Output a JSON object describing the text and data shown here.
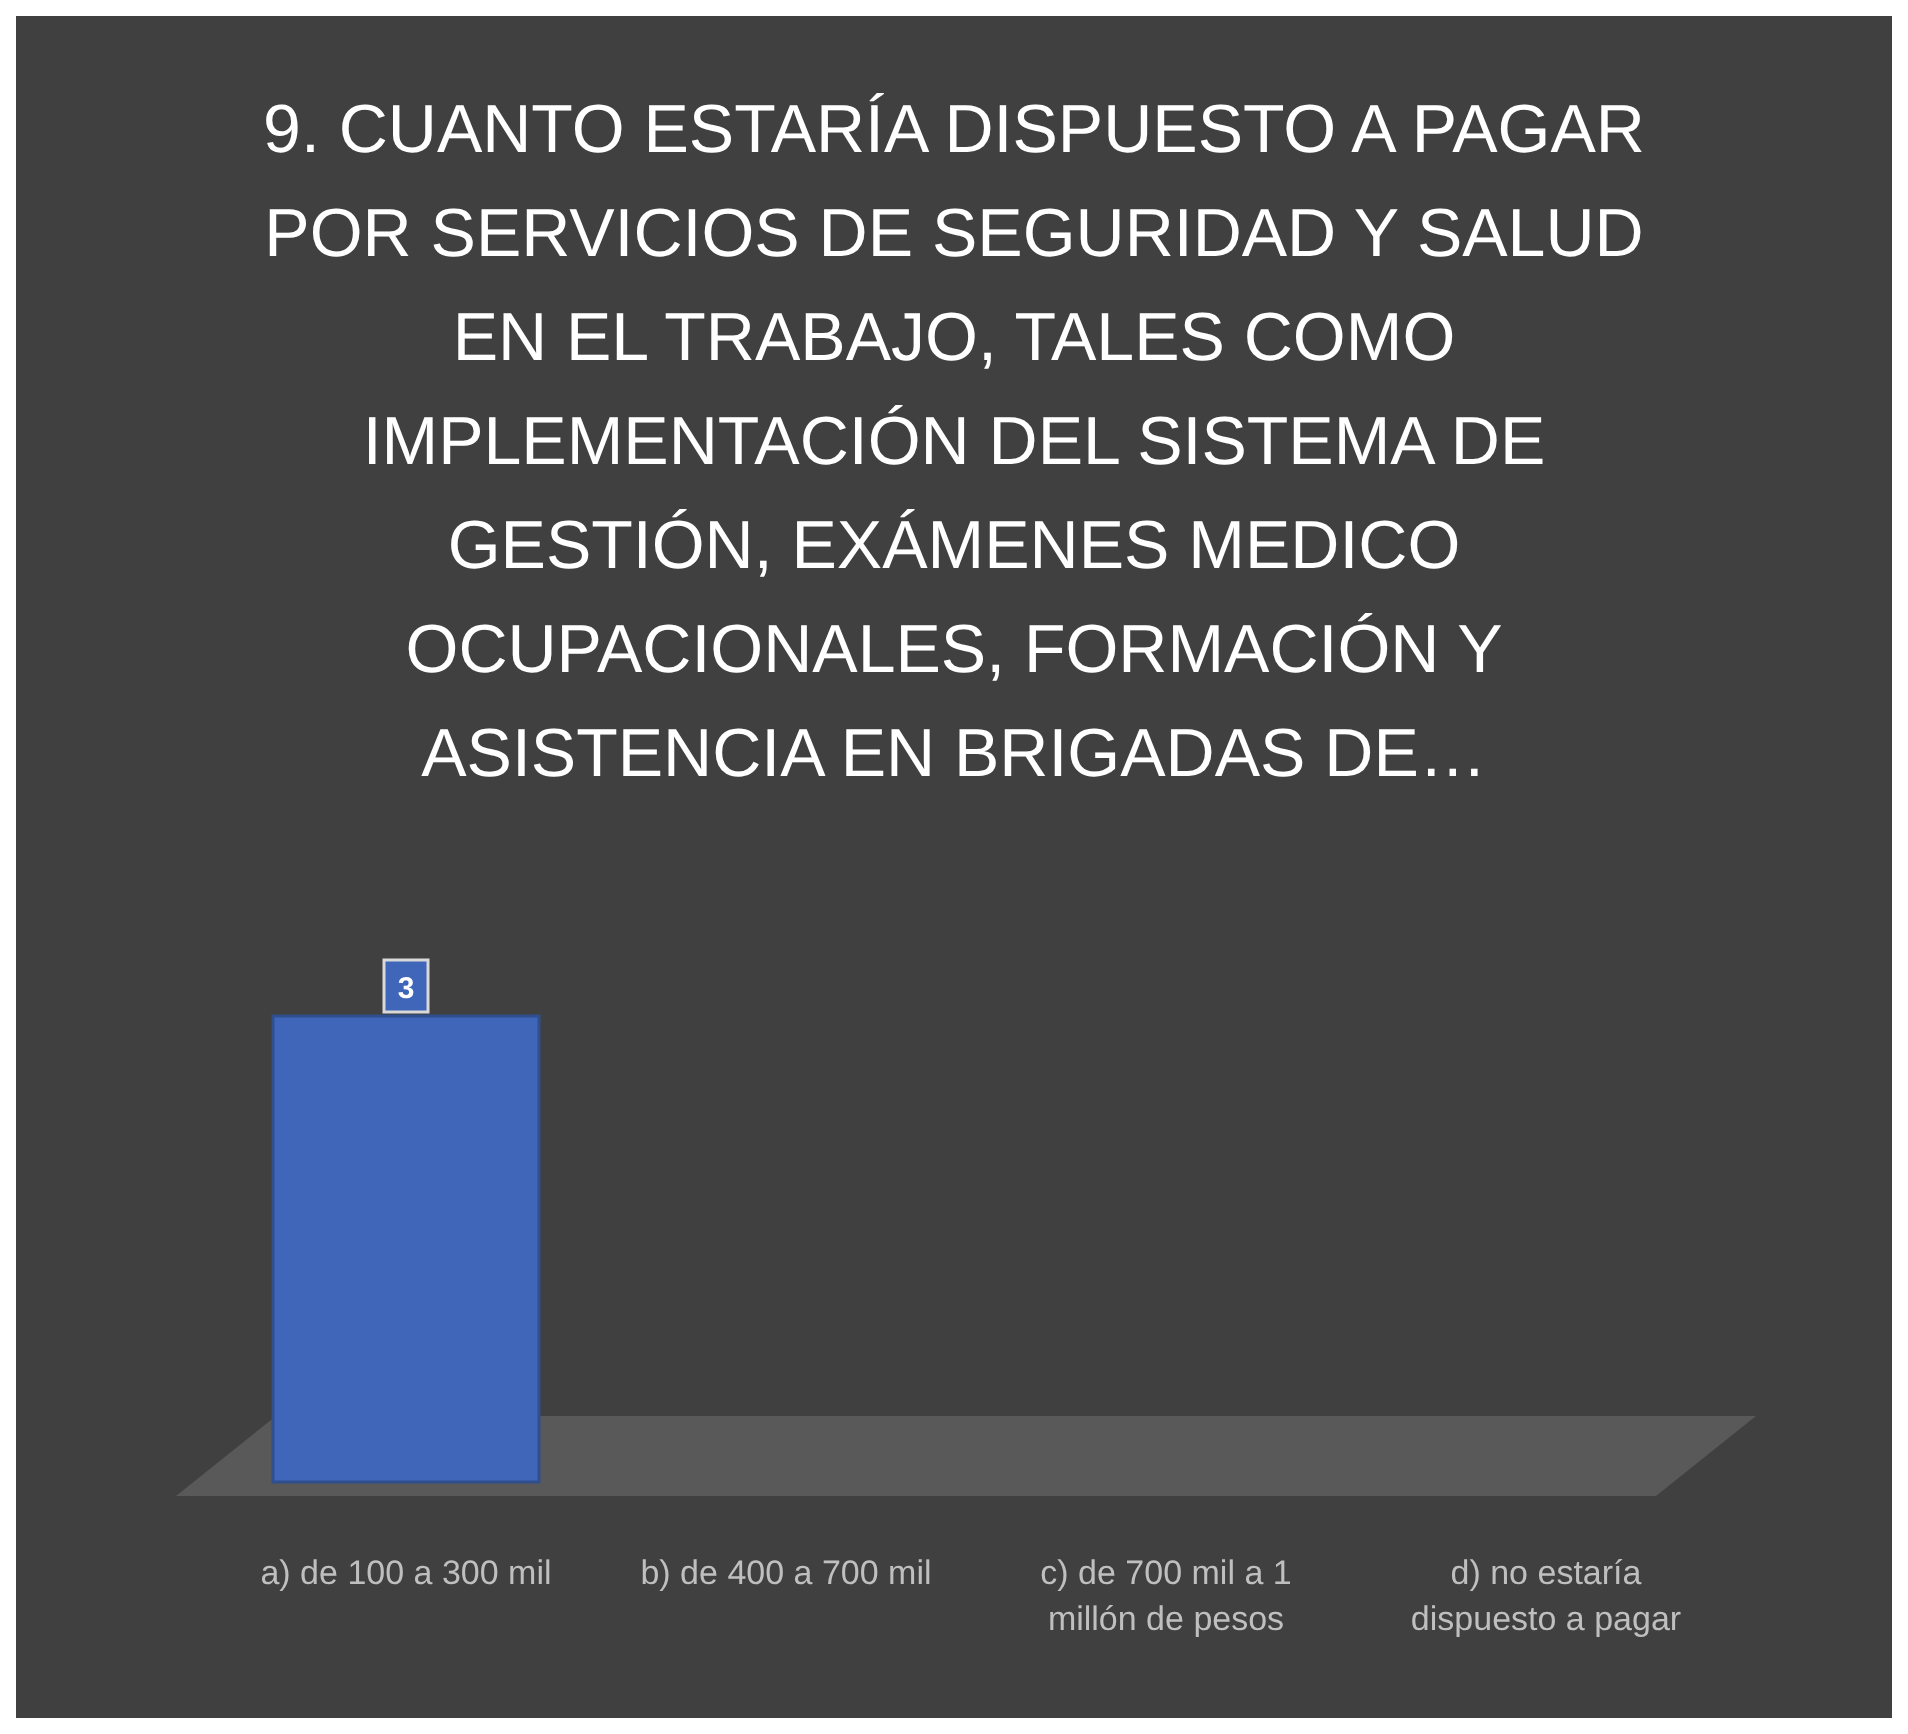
{
  "chart_data": {
    "type": "bar",
    "title": "9. CUANTO ESTARÍA DISPUESTO A PAGAR POR SERVICIOS DE SEGURIDAD Y SALUD EN EL TRABAJO, TALES COMO IMPLEMENTACIÓN DEL SISTEMA DE GESTIÓN, EXÁMENES MEDICO OCUPACIONALES, FORMACIÓN Y ASISTENCIA EN BRIGADAS DE…",
    "categories": [
      "a) de 100 a 300 mil",
      "b) de 400 a 700 mil",
      "c) de 700 mil a 1 millón de pesos",
      "d) no estaría dispuesto a pagar"
    ],
    "values": [
      3,
      0,
      0,
      0
    ],
    "value_labels": [
      "3",
      null,
      null,
      null
    ],
    "color": "#3f66b8"
  }
}
